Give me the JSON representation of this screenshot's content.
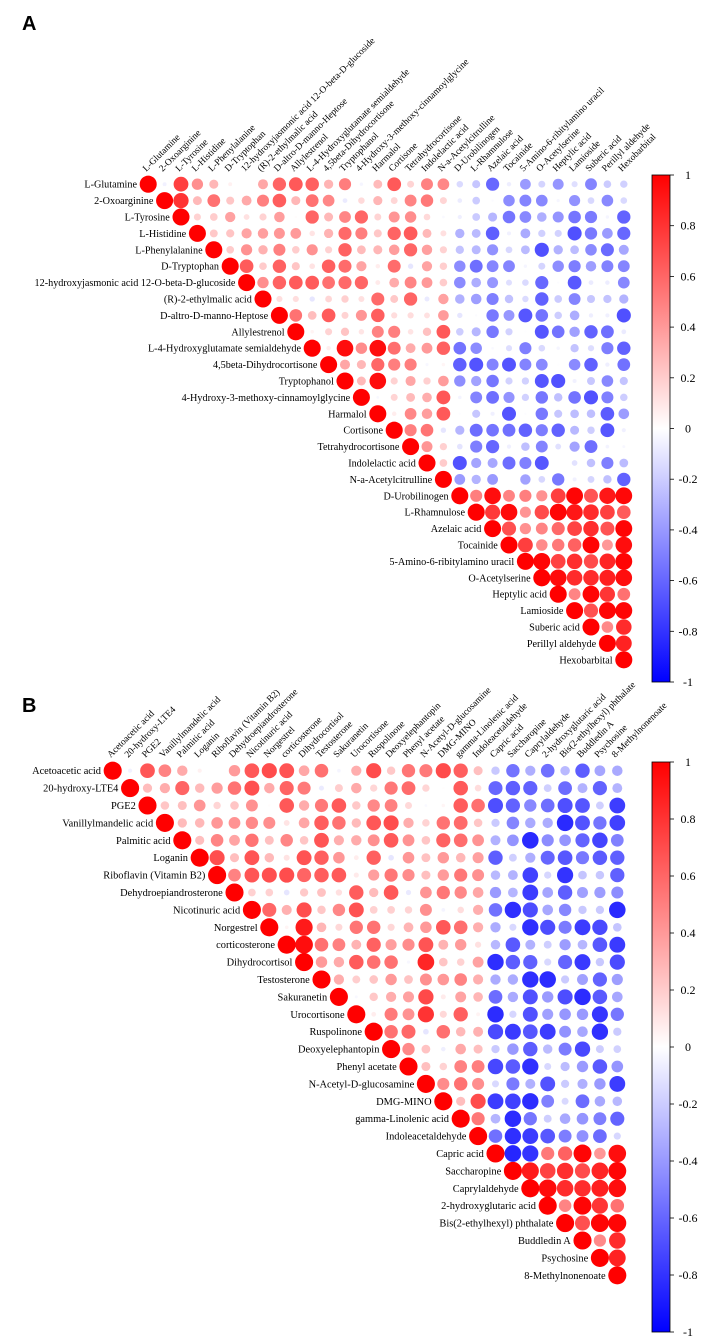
{
  "chart_data": [
    {
      "type": "heatmap",
      "style": "correlation-circle-upper-triangle",
      "panel": "A",
      "colorbar": {
        "min": -1,
        "max": 1,
        "ticks": [
          "1",
          "0.8",
          "0.6",
          "0.4",
          "0.2",
          "0",
          "-0.2",
          "-0.4",
          "-0.6",
          "-0.8",
          "-1"
        ]
      },
      "colors": {
        "positive": "#ff0000",
        "neutral": "#ffffff",
        "negative": "#0000ff"
      },
      "column_labels": [
        "L-Glutamine",
        "2-Oxoarginine",
        "L-Tyrosine",
        "L-Histidine",
        "L-Phenylalanine",
        "D-Tryptophan",
        "12-hydroxyjasmonic acid 12-O-beta-D-glucoside",
        "(R)-2-ethylmalic acid",
        "D-altro-D-manno-Heptose",
        "Allylestrenol",
        "L-4-Hydroxyglutamate semialdehyde",
        "4,5beta-Dihydrocortisone",
        "Tryptophanol",
        "4-Hydroxy-3-methoxy-cinnamoylglycine",
        "Harmalol",
        "Cortisone",
        "Tetrahydrocortisone",
        "Indolelactic acid",
        "N-a-Acetylcitrulline",
        "D-Urobilinogen",
        "L-Rhamnulose",
        "Azelaic acid",
        "Tocainide",
        "5-Amino-6-ribitylamino uracil",
        "O-Acetylserine",
        "Heptylic acid",
        "Lamioside",
        "Suberic acid",
        "Perillyl aldehyde",
        "Hexobarbital"
      ],
      "row_labels": [
        "L-Glutamine",
        "2-Oxoarginine",
        "L-Tyrosine",
        "L-Histidine",
        "L-Phenylalanine",
        "D-Tryptophan",
        "12-hydroxyjasmonic acid 12-O-beta-D-glucoside",
        "(R)-2-ethylmalic acid",
        "D-altro-D-manno-Heptose",
        "Allylestrenol",
        "L-4-Hydroxyglutamate semialdehyde",
        "4,5beta-Dihydrocortisone",
        "Tryptophanol",
        "4-Hydroxy-3-methoxy-cinnamoylglycine",
        "Harmalol",
        "Cortisone",
        "Tetrahydrocortisone",
        "Indolelactic acid",
        "N-a-Acetylcitrulline",
        "D-Urobilinogen",
        "L-Rhamnulose",
        "Azelaic acid",
        "Tocainide",
        "5-Amino-6-ribitylamino uracil",
        "O-Acetylserine",
        "Heptylic acid",
        "Lamioside",
        "Suberic acid",
        "Perillyl aldehyde",
        "Hexobarbital"
      ],
      "group_sizes": [
        19,
        11
      ],
      "block_means": {
        "within_group1": 0.45,
        "within_group2": 0.75,
        "between_groups": -0.35
      },
      "notable_values": [
        {
          "row": "L-4-Hydroxyglutamate semialdehyde",
          "col": "Tryptophanol",
          "value": 0.95
        },
        {
          "row": "L-4-Hydroxyglutamate semialdehyde",
          "col": "Harmalol",
          "value": 0.95
        },
        {
          "row": "Tryptophanol",
          "col": "Harmalol",
          "value": 0.95
        },
        {
          "row": "Allylestrenol",
          "col": "N-a-Acetylcitrulline",
          "value": 0.65
        },
        {
          "row": "Tocainide",
          "col": "Hexobarbital",
          "value": 0.95
        },
        {
          "row": "L-Glutamine",
          "col": "L-Tyrosine",
          "value": 0.75
        },
        {
          "row": "2-Oxoarginine",
          "col": "L-Tyrosine",
          "value": 0.8
        }
      ]
    },
    {
      "type": "heatmap",
      "style": "correlation-circle-upper-triangle",
      "panel": "B",
      "colorbar": {
        "min": -1,
        "max": 1,
        "ticks": [
          "1",
          "0.8",
          "0.6",
          "0.4",
          "0.2",
          "0",
          "-0.2",
          "-0.4",
          "-0.6",
          "-0.8",
          "-1"
        ]
      },
      "colors": {
        "positive": "#ff0000",
        "neutral": "#ffffff",
        "negative": "#0000ff"
      },
      "column_labels": [
        "Acetoacetic acid",
        "20-hydroxy-LTE4",
        "PGE2",
        "Vanillylmandelic acid",
        "Palmitic acid",
        "Loganin",
        "Riboflavin (Vitamin B2)",
        "Dehydroepiandrosterone",
        "Nicotinuric acid",
        "Norgestrel",
        "corticosterone",
        "Dihydrocortisol",
        "Testosterone",
        "Sakuranetin",
        "Urocortisone",
        "Ruspolinone",
        "Deoxyelephantopin",
        "Phenyl acetate",
        "N-Acetyl-D-glucosamine",
        "DMG-MINO",
        "gamma-Linolenic acid",
        "Indoleacetaldehyde",
        "Capric acid",
        "Saccharopine",
        "Caprylaldehyde",
        "2-hydroxyglutaric acid",
        "Bis(2-ethylhexyl) phthalate",
        "Buddledin A",
        "Psychosine",
        "8-Methylnonenoate"
      ],
      "row_labels": [
        "Acetoacetic acid",
        "20-hydroxy-LTE4",
        "PGE2",
        "Vanillylmandelic acid",
        "Palmitic acid",
        "Loganin",
        "Riboflavin (Vitamin B2)",
        "Dehydroepiandrosterone",
        "Nicotinuric acid",
        "Norgestrel",
        "corticosterone",
        "Dihydrocortisol",
        "Testosterone",
        "Sakuranetin",
        "Urocortisone",
        "Ruspolinone",
        "Deoxyelephantopin",
        "Phenyl acetate",
        "N-Acetyl-D-glucosamine",
        "DMG-MINO",
        "gamma-Linolenic acid",
        "Indoleacetaldehyde",
        "Capric acid",
        "Saccharopine",
        "Caprylaldehyde",
        "2-hydroxyglutaric acid",
        "Bis(2-ethylhexyl) phthalate",
        "Buddledin A",
        "Psychosine",
        "8-Methylnonenoate"
      ],
      "group_sizes": [
        22,
        8
      ],
      "block_means": {
        "within_group1": 0.5,
        "within_group2": 0.75,
        "between_groups": -0.5
      },
      "notable_values": [
        {
          "row": "Capric acid",
          "col": "Saccharopine",
          "value": -0.85
        },
        {
          "row": "Capric acid",
          "col": "Caprylaldehyde",
          "value": -0.8
        },
        {
          "row": "Norgestrel",
          "col": "Dihydrocortisol",
          "value": 0.9
        },
        {
          "row": "corticosterone",
          "col": "Dihydrocortisol",
          "value": 0.95
        },
        {
          "row": "Dihydrocortisol",
          "col": "N-Acetyl-D-glucosamine",
          "value": 0.85
        },
        {
          "row": "Urocortisone",
          "col": "N-Acetyl-D-glucosamine",
          "value": 0.8
        },
        {
          "row": "Saccharopine",
          "col": "Caprylaldehyde",
          "value": 0.9
        }
      ]
    }
  ]
}
